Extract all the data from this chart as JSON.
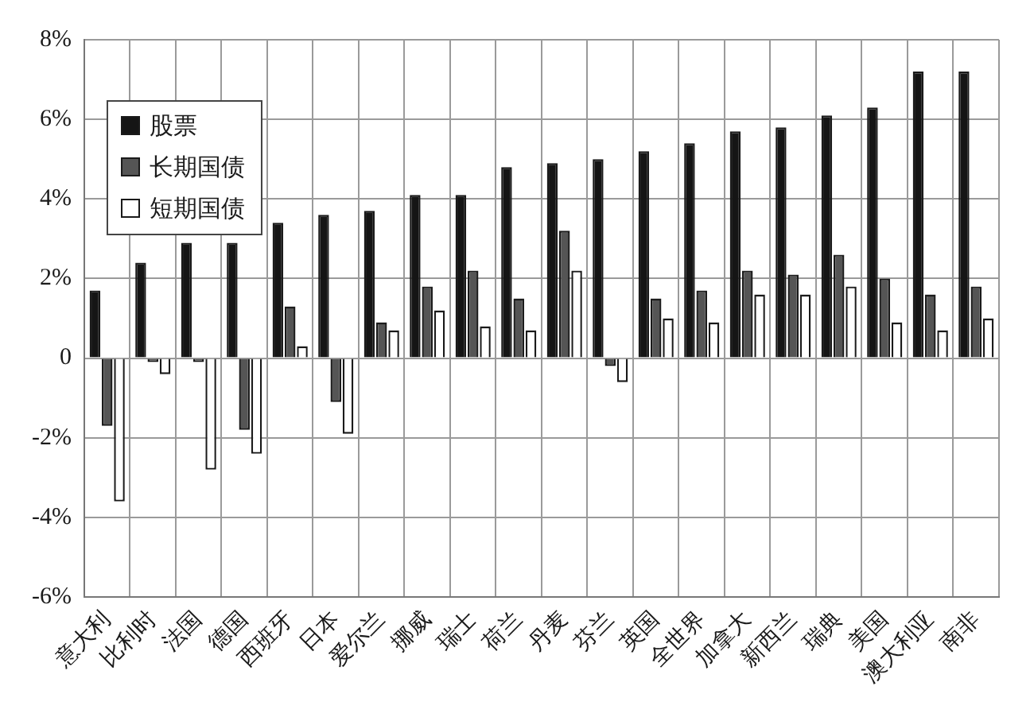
{
  "chart_data": {
    "type": "bar",
    "categories": [
      "意大利",
      "比利时",
      "法国",
      "德国",
      "西班牙",
      "日本",
      "爱尔兰",
      "挪威",
      "瑞士",
      "荷兰",
      "丹麦",
      "芬兰",
      "英国",
      "全世界",
      "加拿大",
      "新西兰",
      "瑞典",
      "美国",
      "澳大利亚",
      "南非"
    ],
    "series": [
      {
        "name": "股票",
        "color": "#151515",
        "values": [
          1.7,
          2.4,
          2.9,
          2.9,
          3.4,
          3.6,
          3.7,
          4.1,
          4.1,
          4.8,
          4.9,
          5.0,
          5.2,
          5.4,
          5.7,
          5.8,
          6.1,
          6.3,
          7.2,
          7.2
        ]
      },
      {
        "name": "长期国债",
        "color": "#555555",
        "values": [
          -1.7,
          -0.1,
          -0.1,
          -1.8,
          1.3,
          -1.1,
          0.9,
          1.8,
          2.2,
          1.5,
          3.2,
          -0.2,
          1.5,
          1.7,
          2.2,
          2.1,
          2.6,
          2.0,
          1.6,
          1.8
        ]
      },
      {
        "name": "短期国债",
        "color": "#ffffff",
        "values": [
          -3.6,
          -0.4,
          -2.8,
          -2.4,
          0.3,
          -1.9,
          0.7,
          1.2,
          0.8,
          0.7,
          2.2,
          -0.6,
          1.0,
          0.9,
          1.6,
          1.6,
          1.8,
          0.9,
          0.7,
          1.0
        ]
      }
    ],
    "ylim": [
      -6,
      8
    ],
    "yticks": [
      {
        "value": -6,
        "label": "-6%"
      },
      {
        "value": -4,
        "label": "-4%"
      },
      {
        "value": -2,
        "label": "-2%"
      },
      0,
      {
        "value": 2,
        "label": "2%"
      },
      {
        "value": 4,
        "label": "4%"
      },
      {
        "value": 6,
        "label": "6%"
      },
      {
        "value": 8,
        "label": "8%"
      }
    ],
    "grid": true,
    "legend": "top left"
  }
}
